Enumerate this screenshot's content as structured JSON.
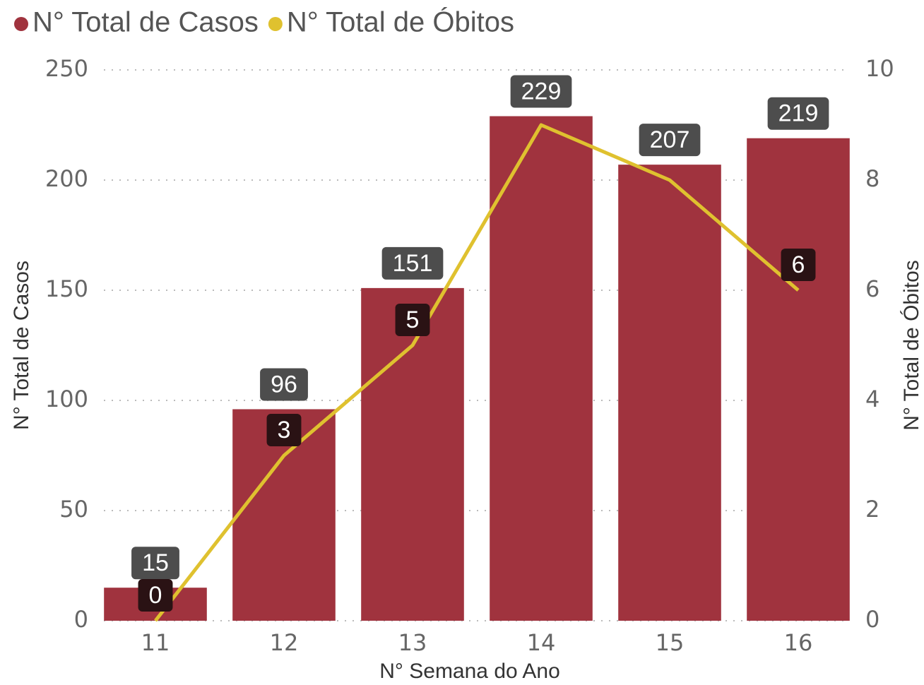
{
  "chart_data": {
    "type": "bar_line",
    "x_label": "N° Semana do Ano",
    "y_label": "N° Total de Casos",
    "y2_label": "N° Total de Óbitos",
    "categories": [
      "11",
      "12",
      "13",
      "14",
      "15",
      "16"
    ],
    "series": [
      {
        "name": "N° Total de Casos",
        "type": "bar",
        "color": "#a0333e",
        "values": [
          15,
          96,
          151,
          229,
          207,
          219
        ]
      },
      {
        "name": "N° Total de Óbitos",
        "type": "line",
        "axis": "y2",
        "color": "#dfc12f",
        "values": [
          0,
          3,
          5,
          9,
          8,
          6
        ],
        "value_labels": [
          "0",
          "3",
          "5",
          null,
          null,
          "6"
        ]
      }
    ],
    "ylim": [
      0,
      250
    ],
    "yticks": [
      0,
      50,
      100,
      150,
      200,
      250
    ],
    "y2lim": [
      0,
      10
    ],
    "y2ticks": [
      0,
      2,
      4,
      6,
      8,
      10
    ],
    "grid": true,
    "legend": "top-left"
  }
}
